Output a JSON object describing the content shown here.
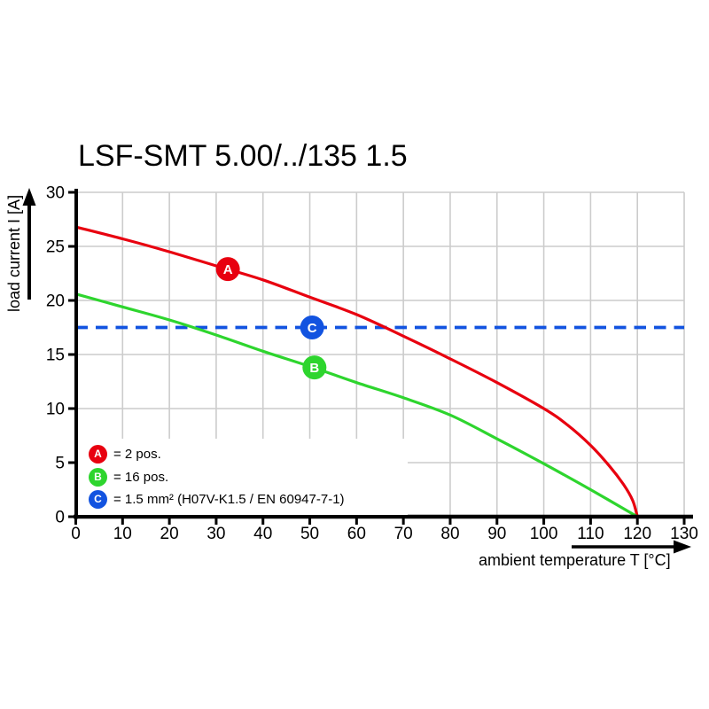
{
  "title": "LSF-SMT 5.00/../135 1.5",
  "colors": {
    "series_a_red": "#e8000f",
    "series_b_green": "#2ed52e",
    "series_c_blue": "#1253e0",
    "grid": "#cccccc",
    "axis": "#000000",
    "background": "#ffffff"
  },
  "legend": {
    "items": [
      {
        "letter": "A",
        "color": "#e8000f",
        "text": "= 2 pos."
      },
      {
        "letter": "B",
        "color": "#2ed52e",
        "text": "= 16 pos."
      },
      {
        "letter": "C",
        "color": "#1253e0",
        "text": "= 1.5 mm² (H07V-K1.5 / EN 60947-7-1)"
      }
    ]
  },
  "chart_data": {
    "type": "line",
    "title": "LSF-SMT 5.00/../135 1.5",
    "xlabel": "ambient temperature T [°C]",
    "ylabel": "load current I [A]",
    "xlim": [
      0,
      130
    ],
    "ylim": [
      0,
      30
    ],
    "xticks": [
      0,
      10,
      20,
      30,
      40,
      50,
      60,
      70,
      80,
      90,
      100,
      110,
      120,
      130
    ],
    "yticks": [
      0,
      5,
      10,
      15,
      20,
      25,
      30
    ],
    "grid": true,
    "legend_position": "lower-left",
    "series": [
      {
        "name": "A",
        "label": "2 pos.",
        "color": "#e8000f",
        "style": "solid",
        "points": [
          [
            0,
            26.8
          ],
          [
            10,
            25.7
          ],
          [
            20,
            24.5
          ],
          [
            30,
            23.2
          ],
          [
            40,
            21.9
          ],
          [
            50,
            20.3
          ],
          [
            60,
            18.7
          ],
          [
            70,
            16.7
          ],
          [
            80,
            14.6
          ],
          [
            90,
            12.4
          ],
          [
            100,
            10.0
          ],
          [
            105,
            8.5
          ],
          [
            110,
            6.6
          ],
          [
            114,
            4.7
          ],
          [
            117,
            3.0
          ],
          [
            119,
            1.5
          ],
          [
            120,
            0
          ]
        ]
      },
      {
        "name": "B",
        "label": "16 pos.",
        "color": "#2ed52e",
        "style": "solid",
        "points": [
          [
            0,
            20.6
          ],
          [
            10,
            19.4
          ],
          [
            20,
            18.2
          ],
          [
            30,
            16.8
          ],
          [
            40,
            15.3
          ],
          [
            50,
            13.9
          ],
          [
            60,
            12.4
          ],
          [
            70,
            11.0
          ],
          [
            80,
            9.4
          ],
          [
            90,
            7.2
          ],
          [
            100,
            4.9
          ],
          [
            110,
            2.5
          ],
          [
            120,
            0
          ]
        ]
      },
      {
        "name": "C",
        "label": "1.5 mm² (H07V-K1.5 / EN 60947-7-1)",
        "color": "#1253e0",
        "style": "dashed",
        "points": [
          [
            0,
            17.5
          ],
          [
            130,
            17.5
          ]
        ]
      }
    ],
    "markers": [
      {
        "label": "A",
        "x": 32.5,
        "y": 22.9,
        "color": "#e8000f"
      },
      {
        "label": "B",
        "x": 51,
        "y": 13.8,
        "color": "#2ed52e"
      },
      {
        "label": "C",
        "x": 50.5,
        "y": 17.5,
        "color": "#1253e0"
      }
    ]
  }
}
